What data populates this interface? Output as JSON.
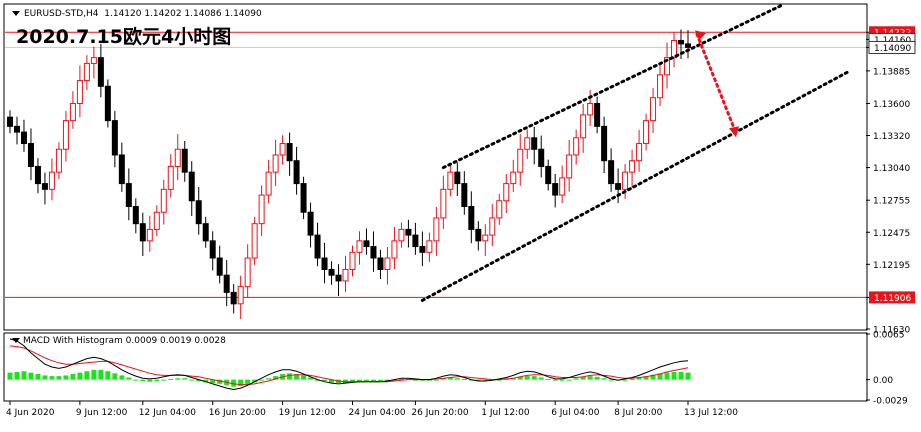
{
  "header": {
    "symbol": "EURUSD-STD,H4",
    "ohlc": "1.14120 1.14202 1.14086 1.14090"
  },
  "title": "2020.7.15欧元4小时图",
  "macd": {
    "label": "MACD With Histogram 0.0009 0.0019 0.0028",
    "axis_ticks": [
      "0.0065",
      "0.00",
      "-0.0029"
    ]
  },
  "colors": {
    "bull": "#e8141c",
    "bear": "#000000",
    "hline": "#e8141c",
    "grid_line": "#c8c8c8",
    "price_tag_bg": "#e8141c",
    "histogram": "#19e619",
    "signal_line": "#e8141c",
    "macd_line": "#000000",
    "channel": "#000000",
    "arrow": "#e8141c"
  },
  "chart_data": [
    {
      "type": "candlestick",
      "title": "EURUSD-STD,H4",
      "ylim": [
        1.1163,
        1.1446
      ],
      "y_ticks": [
        "1.14222",
        "1.14160",
        "1.14090",
        "1.13885",
        "1.13600",
        "1.13320",
        "1.13040",
        "1.12755",
        "1.12475",
        "1.12195",
        "1.11906",
        "1.11630"
      ],
      "x_ticks": [
        "4 Jun 2020",
        "9 Jun 12:00",
        "12 Jun 04:00",
        "16 Jun 20:00",
        "19 Jun 12:00",
        "24 Jun 04:00",
        "26 Jun 20:00",
        "1 Jul 12:00",
        "6 Jul 04:00",
        "8 Jul 20:00",
        "13 Jul 12:00"
      ],
      "horizontal_lines": [
        1.14222,
        1.11906
      ],
      "current_price": 1.1409,
      "channel": {
        "upper": [
          [
            0,
            1.1304
          ],
          [
            50,
            1.1446
          ]
        ],
        "lower": [
          [
            0,
            1.1188
          ],
          [
            95,
            1.139
          ]
        ]
      },
      "arrow": {
        "from": 1.14205,
        "to": 1.1334
      },
      "closes": [
        1.134,
        1.1335,
        1.1325,
        1.1305,
        1.129,
        1.1285,
        1.13,
        1.132,
        1.1345,
        1.136,
        1.138,
        1.1395,
        1.14,
        1.1375,
        1.1345,
        1.1315,
        1.129,
        1.127,
        1.1255,
        1.124,
        1.125,
        1.1265,
        1.1285,
        1.1305,
        1.132,
        1.13,
        1.1275,
        1.1255,
        1.124,
        1.1225,
        1.121,
        1.1195,
        1.1185,
        1.12,
        1.1225,
        1.1255,
        1.128,
        1.13,
        1.1315,
        1.1325,
        1.131,
        1.129,
        1.1265,
        1.1245,
        1.1225,
        1.1215,
        1.121,
        1.1205,
        1.1215,
        1.123,
        1.124,
        1.1235,
        1.1225,
        1.1215,
        1.1225,
        1.124,
        1.125,
        1.1245,
        1.1235,
        1.123,
        1.124,
        1.126,
        1.1285,
        1.13,
        1.129,
        1.127,
        1.125,
        1.124,
        1.1245,
        1.126,
        1.1275,
        1.129,
        1.13,
        1.132,
        1.133,
        1.132,
        1.1305,
        1.129,
        1.128,
        1.1295,
        1.1315,
        1.133,
        1.135,
        1.136,
        1.134,
        1.131,
        1.129,
        1.1285,
        1.13,
        1.131,
        1.1325,
        1.1345,
        1.1365,
        1.1385,
        1.14,
        1.1415,
        1.1412,
        1.1409
      ],
      "series": [
        {
          "name": "EURUSD-STD,H4"
        }
      ]
    },
    {
      "type": "bar",
      "title": "MACD With Histogram 0.0009 0.0019 0.0028",
      "ylim": [
        -0.0029,
        0.0065
      ],
      "series": [
        {
          "name": "histogram"
        },
        {
          "name": "macd"
        },
        {
          "name": "signal"
        }
      ],
      "histogram": [
        0.001,
        0.0011,
        0.0012,
        0.001,
        0.0008,
        0.0006,
        0.0005,
        0.0005,
        0.0006,
        0.0008,
        0.001,
        0.0012,
        0.0014,
        0.0014,
        0.0012,
        0.0009,
        0.0006,
        0.0003,
        0.0,
        -0.0002,
        -0.0003,
        -0.0002,
        -0.0001,
        0.0001,
        0.0002,
        0.0002,
        0.0,
        -0.0002,
        -0.0004,
        -0.0005,
        -0.0006,
        -0.0008,
        -0.001,
        -0.0009,
        -0.0007,
        -0.0004,
        -0.0001,
        0.0002,
        0.0005,
        0.0008,
        0.0009,
        0.0008,
        0.0006,
        0.0003,
        0.0,
        -0.0002,
        -0.0004,
        -0.0005,
        -0.0005,
        -0.0004,
        -0.0003,
        -0.0002,
        -0.0002,
        -0.0002,
        -0.0001,
        0.0,
        0.0001,
        0.0001,
        0.0,
        -0.0001,
        -0.0001,
        0.0,
        0.0002,
        0.0003,
        0.0002,
        0.0001,
        -0.0001,
        -0.0002,
        -0.0002,
        -0.0001,
        0.0,
        0.0001,
        0.0002,
        0.0004,
        0.0005,
        0.0005,
        0.0003,
        0.0001,
        -0.0001,
        -0.0001,
        0.0,
        0.0002,
        0.0004,
        0.0005,
        0.0004,
        0.0002,
        0.0,
        -0.0001,
        0.0,
        0.0001,
        0.0003,
        0.0005,
        0.0007,
        0.0009,
        0.001,
        0.0011,
        0.0011,
        0.001
      ],
      "macd_line": [
        0.0058,
        0.0055,
        0.0048,
        0.0038,
        0.003,
        0.0022,
        0.0018,
        0.0016,
        0.0018,
        0.0022,
        0.0026,
        0.003,
        0.0032,
        0.003,
        0.0026,
        0.002,
        0.0014,
        0.0009,
        0.0005,
        0.0002,
        0.0001,
        0.0002,
        0.0004,
        0.0006,
        0.0007,
        0.0006,
        0.0003,
        0.0,
        -0.0003,
        -0.0006,
        -0.0009,
        -0.0012,
        -0.0014,
        -0.0012,
        -0.0008,
        -0.0003,
        0.0002,
        0.0007,
        0.0011,
        0.0014,
        0.0014,
        0.0012,
        0.0008,
        0.0004,
        0.0,
        -0.0003,
        -0.0005,
        -0.0006,
        -0.0005,
        -0.0004,
        -0.0003,
        -0.0003,
        -0.0003,
        -0.0003,
        -0.0002,
        0.0,
        0.0002,
        0.0002,
        0.0001,
        0.0,
        0.0,
        0.0002,
        0.0005,
        0.0007,
        0.0006,
        0.0003,
        0.0,
        -0.0002,
        -0.0002,
        -0.0001,
        0.0001,
        0.0003,
        0.0006,
        0.001,
        0.0012,
        0.0011,
        0.0008,
        0.0004,
        0.0001,
        0.0001,
        0.0003,
        0.0006,
        0.0009,
        0.0011,
        0.0009,
        0.0005,
        0.0001,
        -0.0001,
        0.0001,
        0.0003,
        0.0006,
        0.001,
        0.0014,
        0.0018,
        0.0021,
        0.0024,
        0.0026,
        0.0027
      ],
      "signal_line": [
        0.0048,
        0.0047,
        0.0045,
        0.0041,
        0.0036,
        0.0031,
        0.0027,
        0.0024,
        0.0022,
        0.0022,
        0.0023,
        0.0024,
        0.0025,
        0.0026,
        0.0026,
        0.0024,
        0.0021,
        0.0018,
        0.0015,
        0.0012,
        0.0009,
        0.0007,
        0.0006,
        0.0006,
        0.0006,
        0.0006,
        0.0005,
        0.0004,
        0.0002,
        0.0,
        -0.0002,
        -0.0004,
        -0.0006,
        -0.0007,
        -0.0007,
        -0.0006,
        -0.0004,
        -0.0002,
        0.0001,
        0.0004,
        0.0006,
        0.0007,
        0.0007,
        0.0006,
        0.0004,
        0.0002,
        0.0,
        -0.0002,
        -0.0003,
        -0.0003,
        -0.0003,
        -0.0003,
        -0.0003,
        -0.0003,
        -0.0003,
        -0.0002,
        -0.0001,
        0.0,
        0.0,
        0.0,
        0.0,
        0.0001,
        0.0002,
        0.0003,
        0.0004,
        0.0004,
        0.0003,
        0.0002,
        0.0001,
        0.0,
        0.0,
        0.0001,
        0.0002,
        0.0004,
        0.0006,
        0.0007,
        0.0007,
        0.0006,
        0.0004,
        0.0003,
        0.0003,
        0.0003,
        0.0004,
        0.0006,
        0.0007,
        0.0006,
        0.0005,
        0.0003,
        0.0002,
        0.0002,
        0.0003,
        0.0004,
        0.0006,
        0.0008,
        0.0011,
        0.0013,
        0.0015,
        0.0017
      ]
    }
  ]
}
